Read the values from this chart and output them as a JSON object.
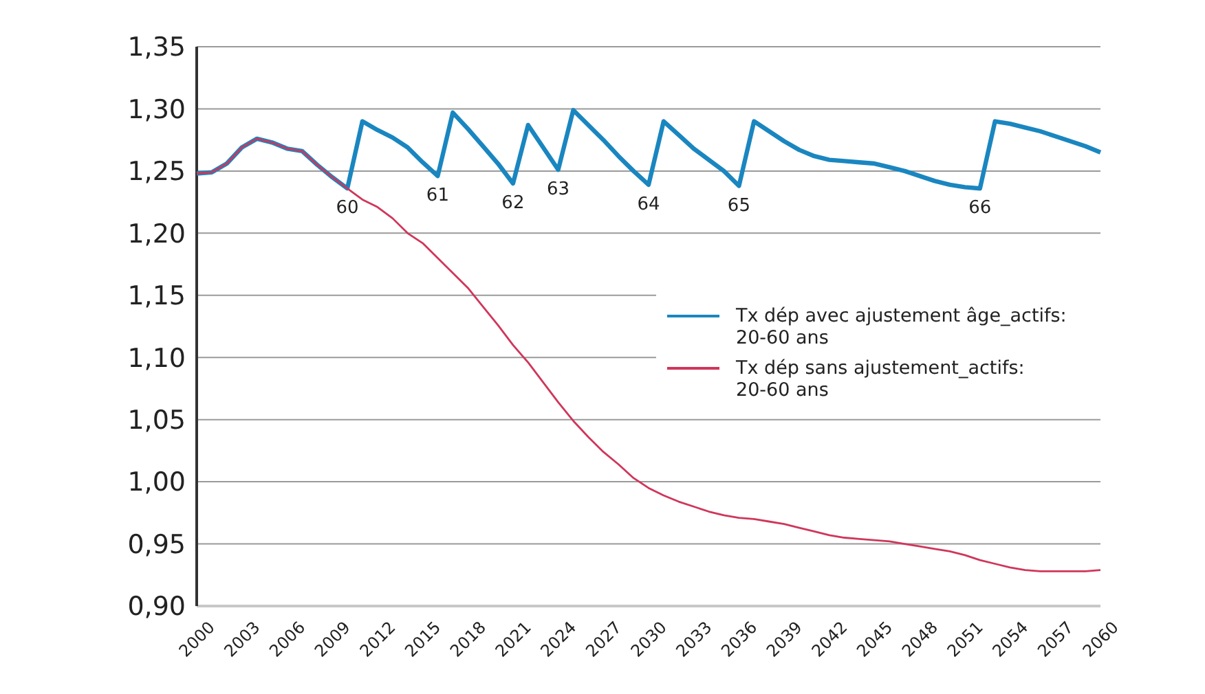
{
  "chart_data": {
    "type": "line",
    "x": [
      2000,
      2001,
      2002,
      2003,
      2004,
      2005,
      2006,
      2007,
      2008,
      2009,
      2010,
      2011,
      2012,
      2013,
      2014,
      2015,
      2016,
      2017,
      2018,
      2019,
      2020,
      2021,
      2022,
      2023,
      2024,
      2025,
      2026,
      2027,
      2028,
      2029,
      2030,
      2031,
      2032,
      2033,
      2034,
      2035,
      2036,
      2037,
      2038,
      2039,
      2040,
      2041,
      2042,
      2043,
      2044,
      2045,
      2046,
      2047,
      2048,
      2049,
      2050,
      2051,
      2052,
      2053,
      2054,
      2055,
      2056,
      2057,
      2058,
      2059,
      2060
    ],
    "series": [
      {
        "name": "Tx dép avec ajustement âge_actifs: 20-60 ans",
        "color": "#1a86c0",
        "values": [
          1.248,
          1.249,
          1.256,
          1.269,
          1.276,
          1.273,
          1.268,
          1.266,
          1.255,
          1.245,
          1.236,
          1.29,
          1.283,
          1.277,
          1.269,
          1.257,
          1.246,
          1.297,
          1.284,
          1.27,
          1.256,
          1.24,
          1.287,
          1.269,
          1.251,
          1.299,
          1.287,
          1.275,
          1.262,
          1.25,
          1.239,
          1.29,
          1.279,
          1.268,
          1.259,
          1.25,
          1.238,
          1.29,
          1.282,
          1.274,
          1.267,
          1.262,
          1.259,
          1.258,
          1.257,
          1.256,
          1.253,
          1.25,
          1.246,
          1.242,
          1.239,
          1.237,
          1.236,
          1.29,
          1.288,
          1.285,
          1.282,
          1.278,
          1.274,
          1.27,
          1.265
        ]
      },
      {
        "name": "Tx dép sans ajustement_actifs: 20-60 ans",
        "color": "#d0365a",
        "values": [
          1.248,
          1.249,
          1.256,
          1.269,
          1.276,
          1.273,
          1.268,
          1.266,
          1.255,
          1.245,
          1.236,
          1.227,
          1.221,
          1.212,
          1.2,
          1.192,
          1.18,
          1.168,
          1.156,
          1.141,
          1.126,
          1.11,
          1.096,
          1.08,
          1.064,
          1.049,
          1.036,
          1.024,
          1.014,
          1.003,
          0.995,
          0.989,
          0.984,
          0.98,
          0.976,
          0.973,
          0.971,
          0.97,
          0.968,
          0.966,
          0.963,
          0.96,
          0.957,
          0.955,
          0.954,
          0.953,
          0.952,
          0.95,
          0.948,
          0.946,
          0.944,
          0.941,
          0.937,
          0.934,
          0.931,
          0.929,
          0.928,
          0.928,
          0.928,
          0.928,
          0.929
        ]
      }
    ],
    "xlim": [
      2000,
      2060
    ],
    "xticks": [
      2000,
      2003,
      2006,
      2009,
      2012,
      2015,
      2018,
      2021,
      2024,
      2027,
      2030,
      2033,
      2036,
      2039,
      2042,
      2045,
      2048,
      2051,
      2054,
      2057,
      2060
    ],
    "ylim": [
      0.9,
      1.35
    ],
    "yticks": [
      {
        "value": 0.9,
        "label": "0,90"
      },
      {
        "value": 0.95,
        "label": "0,95"
      },
      {
        "value": 1.0,
        "label": "1,00"
      },
      {
        "value": 1.05,
        "label": "1,05"
      },
      {
        "value": 1.1,
        "label": "1,10"
      },
      {
        "value": 1.15,
        "label": "1,15"
      },
      {
        "value": 1.2,
        "label": "1,20"
      },
      {
        "value": 1.25,
        "label": "1,25"
      },
      {
        "value": 1.3,
        "label": "1,30"
      },
      {
        "value": 1.35,
        "label": "1,35"
      }
    ],
    "grid": "y",
    "legend": "right",
    "marker": "none",
    "line_style": "solid",
    "annotations": [
      {
        "text": "60",
        "x": 2010,
        "y": 1.236
      },
      {
        "text": "61",
        "x": 2016,
        "y": 1.246
      },
      {
        "text": "62",
        "x": 2021,
        "y": 1.24
      },
      {
        "text": "63",
        "x": 2024,
        "y": 1.251
      },
      {
        "text": "64",
        "x": 2030,
        "y": 1.239
      },
      {
        "text": "65",
        "x": 2036,
        "y": 1.238
      },
      {
        "text": "66",
        "x": 2052,
        "y": 1.236
      }
    ]
  }
}
